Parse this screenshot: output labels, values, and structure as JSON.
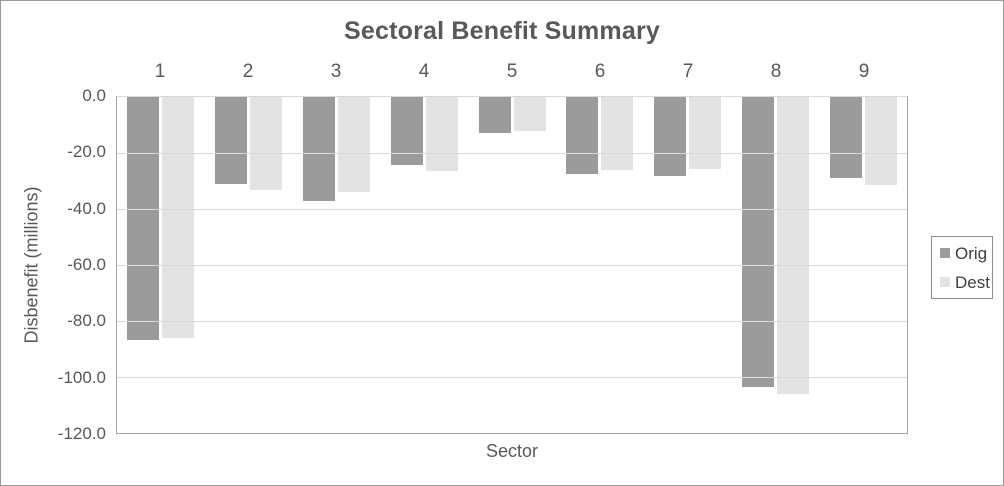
{
  "chart": {
    "title": "Sectoral Benefit Summary",
    "x_axis_title": "Sector",
    "y_axis_title": "Disbenefit (millions)"
  },
  "legend": {
    "position": "right",
    "items": [
      {
        "label": "Orig",
        "color": "#9b9b9b"
      },
      {
        "label": "Dest",
        "color": "#e3e3e3"
      }
    ]
  },
  "colors": {
    "orig_series": "#9b9b9b",
    "dest_series": "#e3e3e3",
    "gridline": "#d9d9d9",
    "axis_line": "#a6a6a6",
    "text": "#595959"
  },
  "chart_data": {
    "type": "bar",
    "title": "Sectoral Benefit Summary",
    "xlabel": "Sector",
    "ylabel": "Disbenefit (millions)",
    "categories": [
      "1",
      "2",
      "3",
      "4",
      "5",
      "6",
      "7",
      "8",
      "9"
    ],
    "series": [
      {
        "name": "Orig",
        "color": "#9b9b9b",
        "values": [
          -86.7,
          -31.2,
          -37.1,
          -24.3,
          -12.7,
          -27.4,
          -28.2,
          -103.7,
          -29.0
        ]
      },
      {
        "name": "Dest",
        "color": "#e3e3e3",
        "values": [
          -85.9,
          -33.2,
          -33.8,
          -26.4,
          -12.2,
          -26.1,
          -25.8,
          -105.9,
          -31.6
        ]
      }
    ],
    "ylim": [
      -120,
      0
    ],
    "ytick_step": 20,
    "ytick_labels": [
      "0.0",
      "-20.0",
      "-40.0",
      "-60.0",
      "-80.0",
      "-100.0",
      "-120.0"
    ],
    "grid": true,
    "legend_position": "right"
  }
}
